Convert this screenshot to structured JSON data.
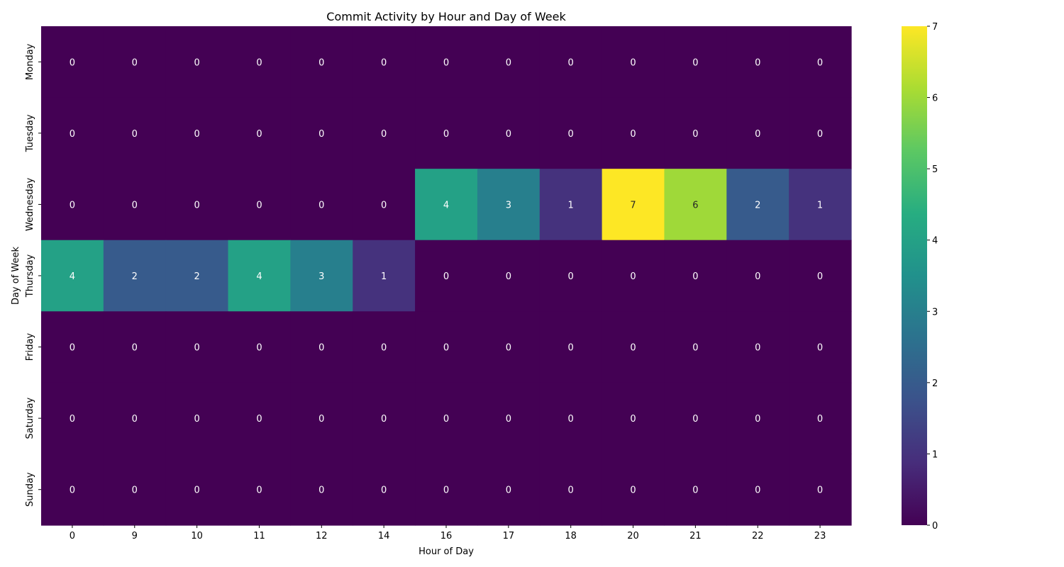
{
  "chart_data": {
    "type": "heatmap",
    "title": "Commit Activity by Hour and Day of Week",
    "xlabel": "Hour of Day",
    "ylabel": "Day of Week",
    "x_categories": [
      "0",
      "9",
      "10",
      "11",
      "12",
      "14",
      "16",
      "17",
      "18",
      "20",
      "21",
      "22",
      "23"
    ],
    "y_categories": [
      "Monday",
      "Tuesday",
      "Wednesday",
      "Thursday",
      "Friday",
      "Saturday",
      "Sunday"
    ],
    "values": [
      [
        0,
        0,
        0,
        0,
        0,
        0,
        0,
        0,
        0,
        0,
        0,
        0,
        0
      ],
      [
        0,
        0,
        0,
        0,
        0,
        0,
        0,
        0,
        0,
        0,
        0,
        0,
        0
      ],
      [
        0,
        0,
        0,
        0,
        0,
        0,
        4,
        3,
        1,
        7,
        6,
        2,
        1
      ],
      [
        4,
        2,
        2,
        4,
        3,
        1,
        0,
        0,
        0,
        0,
        0,
        0,
        0
      ],
      [
        0,
        0,
        0,
        0,
        0,
        0,
        0,
        0,
        0,
        0,
        0,
        0,
        0
      ],
      [
        0,
        0,
        0,
        0,
        0,
        0,
        0,
        0,
        0,
        0,
        0,
        0,
        0
      ],
      [
        0,
        0,
        0,
        0,
        0,
        0,
        0,
        0,
        0,
        0,
        0,
        0,
        0
      ]
    ],
    "colorscale": "viridis",
    "vmin": 0,
    "vmax": 7,
    "colorbar_ticks": [
      0,
      1,
      2,
      3,
      4,
      5,
      6,
      7
    ],
    "annotations": true,
    "grid": false
  }
}
